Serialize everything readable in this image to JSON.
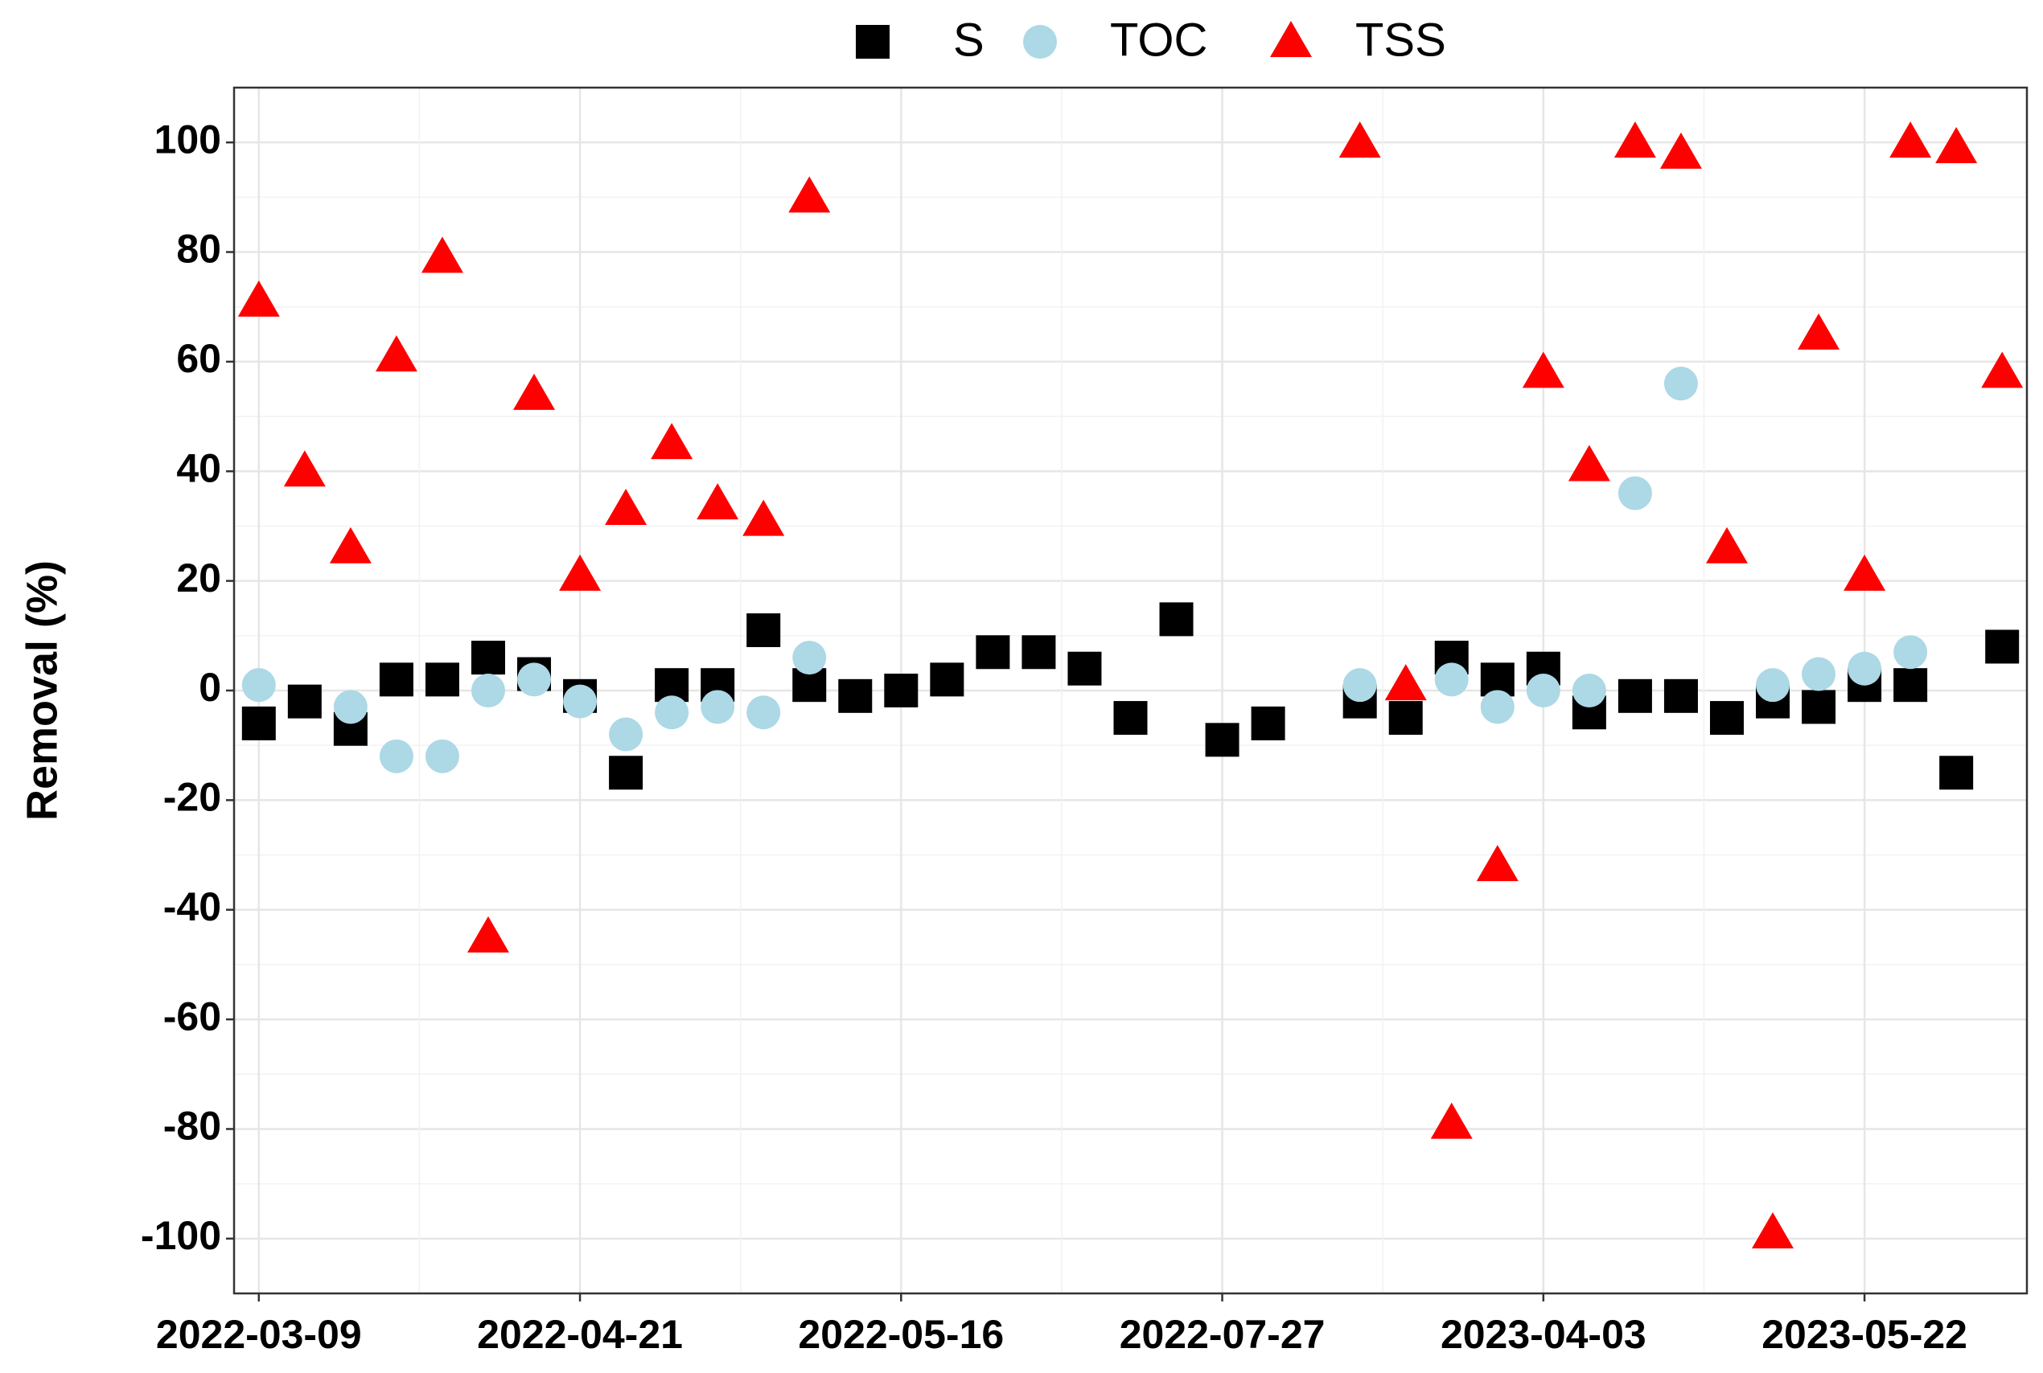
{
  "chart_data": {
    "type": "scatter",
    "y_label": "Removal (%)",
    "categories": [
      "2022-03-09",
      null,
      null,
      null,
      null,
      null,
      null,
      "2022-04-21",
      null,
      null,
      null,
      null,
      null,
      null,
      "2022-05-16",
      null,
      null,
      null,
      null,
      null,
      null,
      "2022-07-27",
      null,
      null,
      null,
      null,
      null,
      null,
      "2023-04-03",
      null,
      null,
      null,
      null,
      null,
      null,
      "2023-05-22",
      null,
      null,
      null
    ],
    "series": [
      {
        "name": "S",
        "color": "#000000",
        "marker": "square",
        "values": [
          -6,
          -2,
          -7,
          2,
          2,
          6,
          3,
          -1,
          -15,
          1,
          1,
          11,
          1,
          -1,
          0,
          2,
          7,
          7,
          4,
          -5,
          13,
          -9,
          -6,
          null,
          -2,
          -5,
          6,
          2,
          4,
          -4,
          -1,
          -1,
          -5,
          -2,
          -3,
          1,
          1,
          -15,
          8
        ]
      },
      {
        "name": "TOC",
        "color": "#add8e6",
        "marker": "circle",
        "values": [
          1,
          null,
          -3,
          -12,
          -12,
          0,
          2,
          -2,
          -8,
          -4,
          -3,
          -4,
          6,
          null,
          null,
          null,
          null,
          null,
          null,
          null,
          null,
          null,
          null,
          null,
          1,
          null,
          2,
          -3,
          0,
          0,
          36,
          56,
          null,
          1,
          3,
          4,
          7,
          null,
          null
        ]
      },
      {
        "name": "TSS",
        "color": "#ff0000",
        "marker": "triangle",
        "values": [
          71,
          40,
          26,
          61,
          79,
          -45,
          54,
          21,
          33,
          45,
          34,
          31,
          90,
          null,
          null,
          null,
          null,
          null,
          null,
          null,
          null,
          null,
          null,
          null,
          100,
          1,
          -79,
          -32,
          58,
          41,
          100,
          98,
          26,
          -99,
          65,
          21,
          100,
          99,
          58
        ]
      }
    ],
    "ylim": [
      -110,
      110
    ],
    "yticks": [
      -100,
      -80,
      -60,
      -40,
      -20,
      0,
      20,
      40,
      60,
      80,
      100
    ],
    "grid": true,
    "legend": "top"
  }
}
